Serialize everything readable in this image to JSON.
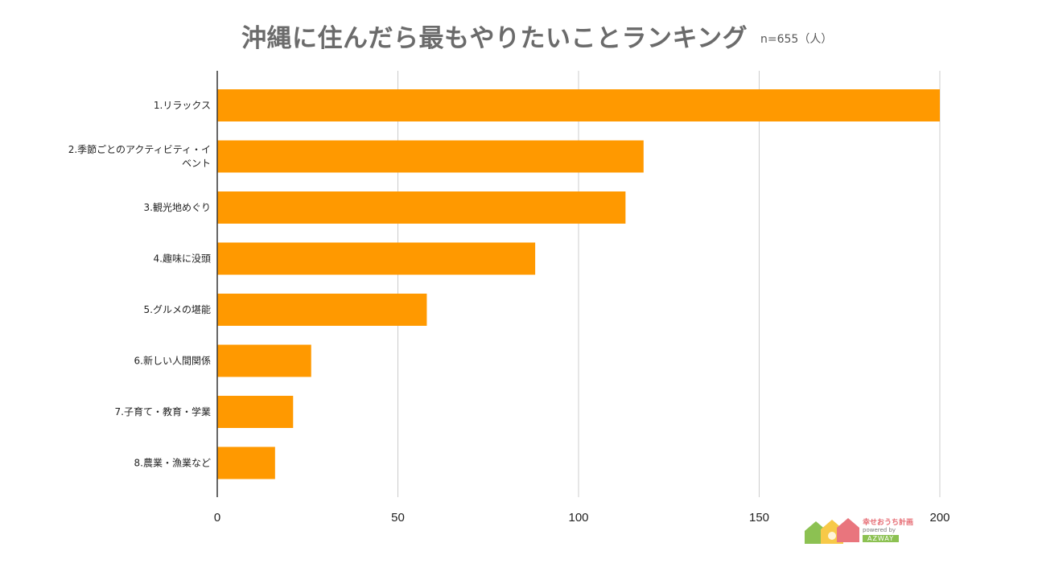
{
  "chart_data": {
    "type": "bar",
    "orientation": "horizontal",
    "title": "沖縄に住んだら最もやりたいことランキング",
    "note": "n=655（人）",
    "categories": [
      "1.リラックス",
      "2.季節ごとのアクティビティ・イベント",
      "3.観光地めぐり",
      "4.趣味に没頭",
      "5.グルメの堪能",
      "6.新しい人間関係",
      "7.子育て・教育・学業",
      "8.農業・漁業など"
    ],
    "category_lines": [
      [
        "1.リラックス"
      ],
      [
        "2.季節ごとのアクティビティ・イ",
        "ベント"
      ],
      [
        "3.観光地めぐり"
      ],
      [
        "4.趣味に没頭"
      ],
      [
        "5.グルメの堪能"
      ],
      [
        "6.新しい人間関係"
      ],
      [
        "7.子育て・教育・学業"
      ],
      [
        "8.農業・漁業など"
      ]
    ],
    "values": [
      200,
      118,
      113,
      88,
      58,
      26,
      21,
      16
    ],
    "xlim": [
      0,
      200
    ],
    "xticks": [
      0,
      50,
      100,
      150,
      200
    ],
    "xlabel": "",
    "ylabel": "",
    "grid": true,
    "bar_color": "#ff9900",
    "grid_color": "#cccccc",
    "axis_color": "#333333"
  },
  "logo": {
    "name": "幸せおうち計画",
    "powered": "powered by",
    "brand": "AZWAY"
  }
}
